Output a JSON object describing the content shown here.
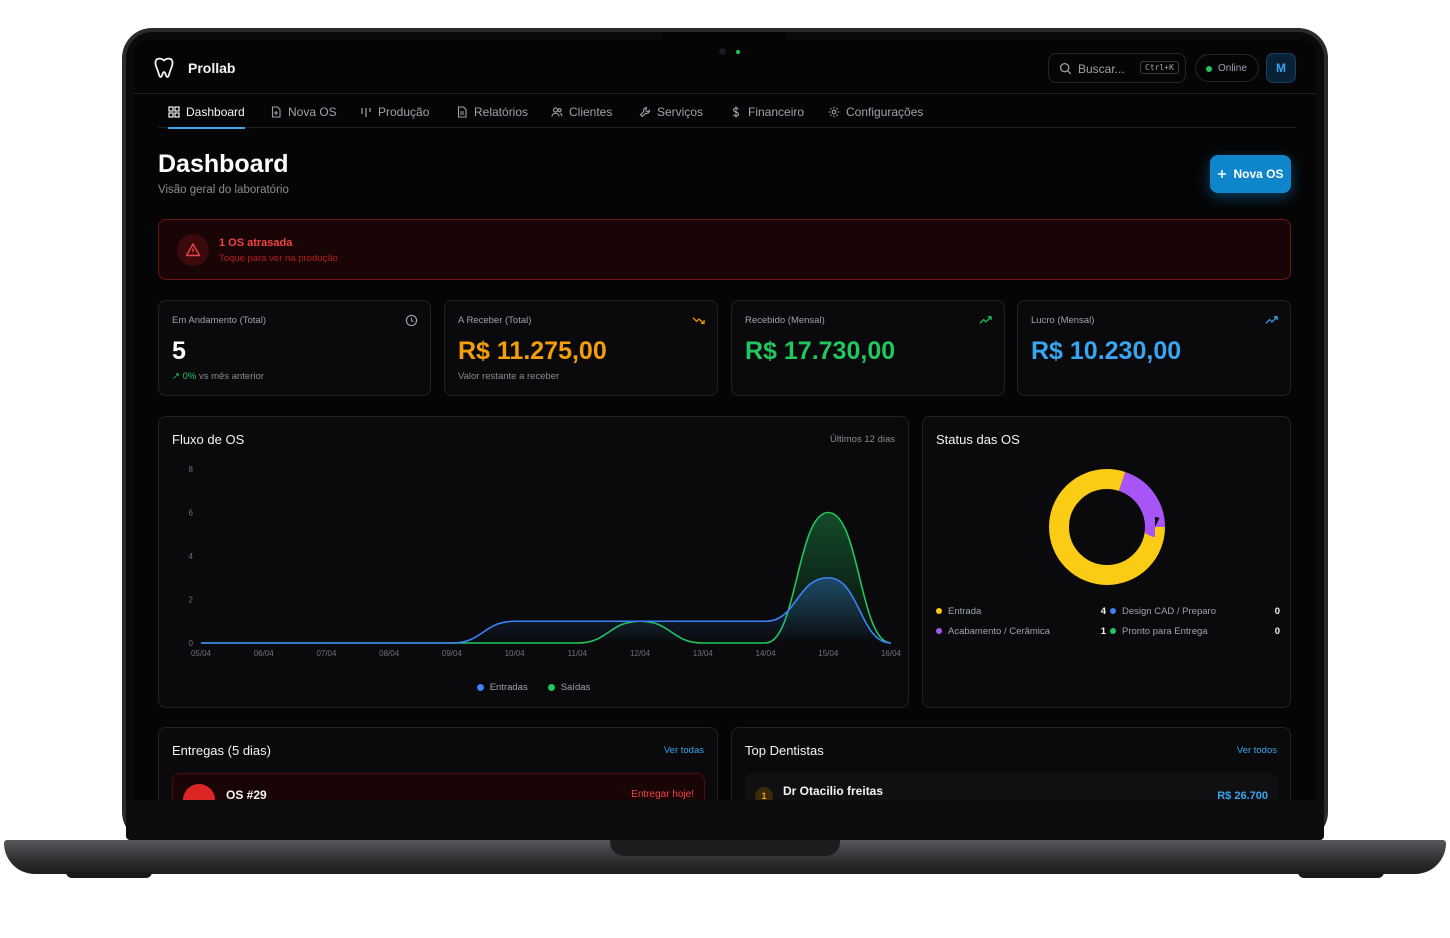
{
  "app": {
    "title": "Prollab"
  },
  "header": {
    "search_placeholder": "Buscar...",
    "search_shortcut": "Ctrl+K",
    "status": "Online",
    "avatar_initial": "M"
  },
  "nav": {
    "items": [
      {
        "label": "Dashboard",
        "icon": "grid-icon",
        "active": true
      },
      {
        "label": "Nova OS",
        "icon": "file-plus-icon"
      },
      {
        "label": "Produção",
        "icon": "columns-icon"
      },
      {
        "label": "Relatórios",
        "icon": "file-text-icon"
      },
      {
        "label": "Clientes",
        "icon": "users-icon"
      },
      {
        "label": "Serviços",
        "icon": "wrench-icon"
      },
      {
        "label": "Financeiro",
        "icon": "dollar-icon"
      },
      {
        "label": "Configurações",
        "icon": "gear-icon"
      }
    ]
  },
  "page": {
    "title": "Dashboard",
    "subtitle": "Visão geral do laboratório",
    "new_button": "Nova OS"
  },
  "alert": {
    "title": "1 OS atrasada",
    "subtitle": "Toque para ver na produção",
    "color": "#ef4444"
  },
  "kpis": [
    {
      "label": "Em Andamento (Total)",
      "value": "5",
      "trend": "0%",
      "trend_text": "vs mês anterior",
      "icon": "clock-icon",
      "color": "#ffffff"
    },
    {
      "label": "A Receber (Total)",
      "value": "R$ 11.275,00",
      "foot": "Valor restante a receber",
      "icon": "trending-down-icon",
      "color": "#f59e0b"
    },
    {
      "label": "Recebido (Mensal)",
      "value": "R$ 17.730,00",
      "icon": "trending-up-icon",
      "color": "#22c55e"
    },
    {
      "label": "Lucro (Mensal)",
      "value": "R$ 10.230,00",
      "icon": "trending-up-icon",
      "color": "#38a5f0"
    }
  ],
  "flow": {
    "title": "Fluxo de OS",
    "range": "Últimos 12 dias",
    "chart_data": {
      "type": "area",
      "x": [
        "05/04",
        "06/04",
        "07/04",
        "08/04",
        "09/04",
        "10/04",
        "11/04",
        "12/04",
        "13/04",
        "14/04",
        "15/04",
        "16/04"
      ],
      "yticks": [
        0,
        2,
        4,
        6,
        8
      ],
      "ylim": [
        0,
        8
      ],
      "series": [
        {
          "name": "Entradas",
          "color": "#3b82f6",
          "values": [
            0,
            0,
            0,
            0,
            0,
            1,
            1,
            1,
            1,
            1,
            3,
            0
          ]
        },
        {
          "name": "Saídas",
          "color": "#22c55e",
          "values": [
            0,
            0,
            0,
            0,
            0,
            0,
            0,
            1,
            0,
            0,
            6,
            0
          ]
        }
      ],
      "legend_position": "bottom"
    }
  },
  "status": {
    "title": "Status das OS",
    "chart_data": {
      "type": "pie",
      "donut": true,
      "slices": [
        {
          "label": "Entrada",
          "value": 4,
          "color": "#facc15"
        },
        {
          "label": "Design CAD / Preparo",
          "value": 0,
          "color": "#3b82f6"
        },
        {
          "label": "Acabamento / Cerâmica",
          "value": 1,
          "color": "#a855f7"
        },
        {
          "label": "Pronto para Entrega",
          "value": 0,
          "color": "#22c55e"
        }
      ]
    }
  },
  "deliveries": {
    "title": "Entregas (5 dias)",
    "link": "Ver todas",
    "items": [
      {
        "os": "OS #29",
        "status": "Entregar hoje!"
      }
    ]
  },
  "dentists": {
    "title": "Top Dentistas",
    "link": "Ver todos",
    "items": [
      {
        "rank": "1",
        "name": "Dr Otacilio freitas",
        "value": "R$ 26.700"
      }
    ]
  }
}
